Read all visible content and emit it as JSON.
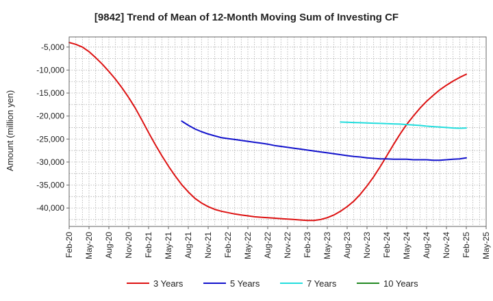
{
  "chart_data": {
    "type": "line",
    "title": "[9842]  Trend of Mean of 12-Month Moving Sum of Investing CF",
    "xlabel": "",
    "ylabel": "Amount (million yen)",
    "x_ticks": [
      "Feb-20",
      "May-20",
      "Aug-20",
      "Nov-20",
      "Feb-21",
      "May-21",
      "Aug-21",
      "Nov-21",
      "Feb-22",
      "May-22",
      "Aug-22",
      "Nov-22",
      "Feb-23",
      "May-23",
      "Aug-23",
      "Nov-23",
      "Feb-24",
      "May-24",
      "Aug-24",
      "Nov-24",
      "Feb-25",
      "May-25"
    ],
    "y_ticks": [
      -5000,
      -10000,
      -15000,
      -20000,
      -25000,
      -30000,
      -35000,
      -40000
    ],
    "y_tick_labels": [
      "-5,000",
      "-10,000",
      "-15,000",
      "-20,000",
      "-25,000",
      "-30,000",
      "-35,000",
      "-40,000"
    ],
    "ylim": [
      -44000,
      -2800
    ],
    "grid": true,
    "legend_position": "bottom",
    "series": [
      {
        "name": "3 Years",
        "color": "#dd1111",
        "x": [
          "Feb-20",
          "Mar-20",
          "Apr-20",
          "May-20",
          "Jun-20",
          "Jul-20",
          "Aug-20",
          "Sep-20",
          "Oct-20",
          "Nov-20",
          "Dec-20",
          "Jan-21",
          "Feb-21",
          "Mar-21",
          "Apr-21",
          "May-21",
          "Jun-21",
          "Jul-21",
          "Aug-21",
          "Sep-21",
          "Oct-21",
          "Nov-21",
          "Dec-21",
          "Jan-22",
          "Feb-22",
          "Mar-22",
          "Apr-22",
          "May-22",
          "Jun-22",
          "Jul-22",
          "Aug-22",
          "Sep-22",
          "Oct-22",
          "Nov-22",
          "Dec-22",
          "Jan-23",
          "Feb-23",
          "Mar-23",
          "Apr-23",
          "May-23",
          "Jun-23",
          "Jul-23",
          "Aug-23",
          "Sep-23",
          "Oct-23",
          "Nov-23",
          "Dec-23",
          "Jan-24",
          "Feb-24",
          "Mar-24",
          "Apr-24",
          "May-24",
          "Jun-24",
          "Jul-24",
          "Aug-24",
          "Sep-24",
          "Oct-24",
          "Nov-24",
          "Dec-24",
          "Jan-25",
          "Feb-25"
        ],
        "values": [
          -4000,
          -4400,
          -5000,
          -6000,
          -7300,
          -8700,
          -10300,
          -12000,
          -13900,
          -16000,
          -18300,
          -20900,
          -23600,
          -26200,
          -28600,
          -30900,
          -33000,
          -34900,
          -36500,
          -37900,
          -38900,
          -39700,
          -40300,
          -40700,
          -41000,
          -41300,
          -41500,
          -41700,
          -41900,
          -42000,
          -42100,
          -42200,
          -42300,
          -42400,
          -42500,
          -42600,
          -42700,
          -42700,
          -42500,
          -42100,
          -41500,
          -40700,
          -39700,
          -38500,
          -37000,
          -35200,
          -33200,
          -31000,
          -28600,
          -26200,
          -23900,
          -21800,
          -20000,
          -18300,
          -16800,
          -15500,
          -14300,
          -13300,
          -12400,
          -11600,
          -10900
        ]
      },
      {
        "name": "5 Years",
        "color": "#1111cc",
        "x": [
          "Jul-21",
          "Aug-21",
          "Sep-21",
          "Oct-21",
          "Nov-21",
          "Dec-21",
          "Jan-22",
          "Feb-22",
          "Mar-22",
          "Apr-22",
          "May-22",
          "Jun-22",
          "Jul-22",
          "Aug-22",
          "Sep-22",
          "Oct-22",
          "Nov-22",
          "Dec-22",
          "Jan-23",
          "Feb-23",
          "Mar-23",
          "Apr-23",
          "May-23",
          "Jun-23",
          "Jul-23",
          "Aug-23",
          "Sep-23",
          "Oct-23",
          "Nov-23",
          "Dec-23",
          "Jan-24",
          "Feb-24",
          "Mar-24",
          "Apr-24",
          "May-24",
          "Jun-24",
          "Jul-24",
          "Aug-24",
          "Sep-24",
          "Oct-24",
          "Nov-24",
          "Dec-24",
          "Jan-25",
          "Feb-25"
        ],
        "values": [
          -21100,
          -22000,
          -22800,
          -23400,
          -23900,
          -24300,
          -24700,
          -24900,
          -25100,
          -25300,
          -25500,
          -25700,
          -25900,
          -26100,
          -26400,
          -26600,
          -26800,
          -27000,
          -27200,
          -27400,
          -27600,
          -27800,
          -28000,
          -28200,
          -28400,
          -28600,
          -28800,
          -28900,
          -29100,
          -29200,
          -29300,
          -29300,
          -29400,
          -29400,
          -29400,
          -29500,
          -29500,
          -29500,
          -29600,
          -29600,
          -29500,
          -29400,
          -29300,
          -29100
        ]
      },
      {
        "name": "7 Years",
        "color": "#22dddd",
        "x": [
          "Jul-23",
          "Aug-23",
          "Sep-23",
          "Oct-23",
          "Nov-23",
          "Dec-23",
          "Jan-24",
          "Feb-24",
          "Mar-24",
          "Apr-24",
          "May-24",
          "Jun-24",
          "Jul-24",
          "Aug-24",
          "Sep-24",
          "Oct-24",
          "Nov-24",
          "Dec-24",
          "Jan-25",
          "Feb-25"
        ],
        "values": [
          -21300,
          -21350,
          -21400,
          -21450,
          -21500,
          -21550,
          -21600,
          -21650,
          -21700,
          -21750,
          -21850,
          -21950,
          -22050,
          -22200,
          -22300,
          -22400,
          -22500,
          -22600,
          -22650,
          -22600
        ]
      },
      {
        "name": "10 Years",
        "color": "#228822",
        "x": [],
        "values": []
      }
    ]
  }
}
